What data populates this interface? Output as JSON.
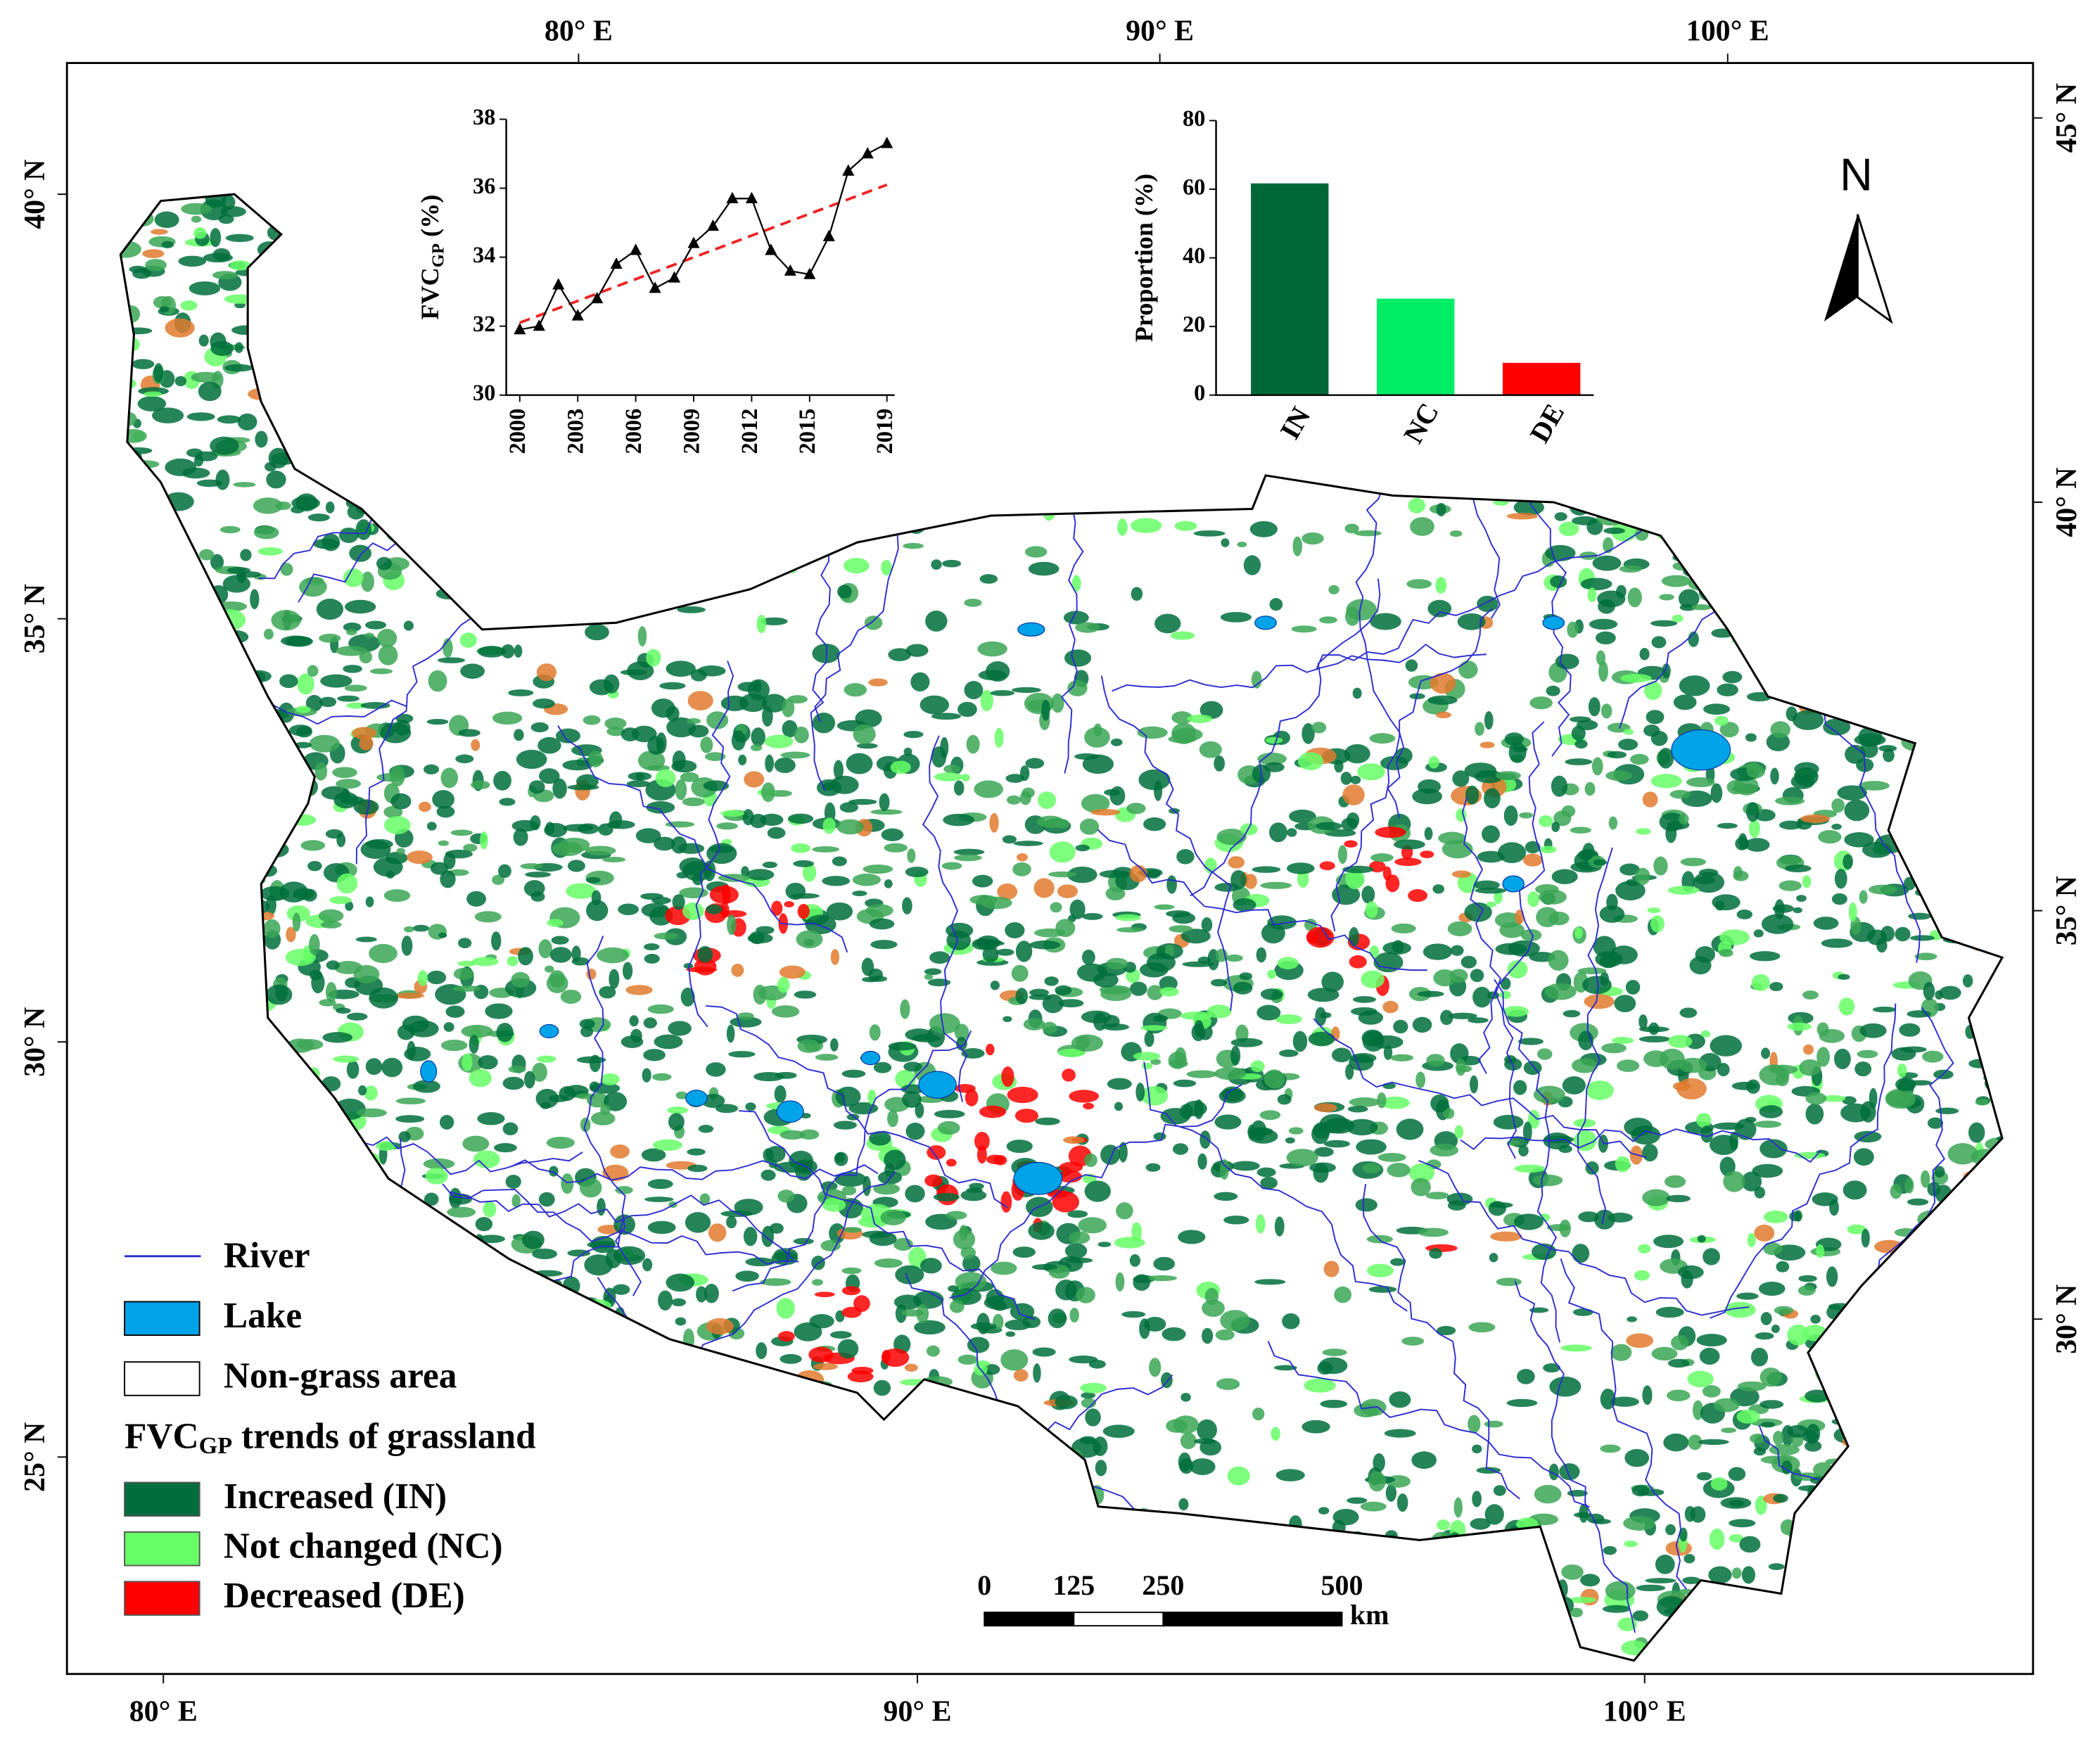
{
  "map": {
    "lon_labels_top": [
      "80° E",
      "90° E",
      "100° E"
    ],
    "lon_labels_bottom": [
      "80° E",
      "90° E",
      "100° E"
    ],
    "lat_labels_left": [
      "40° N",
      "35° N",
      "30° N",
      "25° N"
    ],
    "lat_labels_right": [
      "45° N",
      "40° N",
      "35° N",
      "30° N"
    ],
    "north": "N",
    "scale_bar": {
      "ticks": [
        0,
        125,
        250,
        500
      ],
      "unit": "km"
    }
  },
  "legend": {
    "items": [
      {
        "label": "River",
        "color": "#2b2bd0",
        "kind": "line"
      },
      {
        "label": "Lake",
        "color": "#00a2e8",
        "kind": "box"
      },
      {
        "label": "Non-grass area",
        "color": "#ffffff",
        "kind": "box"
      }
    ],
    "heading_parts": [
      "FVC",
      "GP",
      " trends of grassland"
    ],
    "classes": [
      {
        "label": "Increased (IN)",
        "color": "#006e3c"
      },
      {
        "label": "Not changed (NC)",
        "color": "#66ff66"
      },
      {
        "label": "Decreased (DE)",
        "color": "#ff0000"
      }
    ]
  },
  "chart_data": [
    {
      "type": "line",
      "x": [
        2000,
        2001,
        2002,
        2003,
        2004,
        2005,
        2006,
        2007,
        2008,
        2009,
        2010,
        2011,
        2012,
        2013,
        2014,
        2015,
        2016,
        2017,
        2018,
        2019
      ],
      "values": [
        31.9,
        32.0,
        33.2,
        32.3,
        32.8,
        33.8,
        34.2,
        33.1,
        33.4,
        34.4,
        34.9,
        35.7,
        35.7,
        34.2,
        33.6,
        33.5,
        34.6,
        36.5,
        37.0,
        37.3
      ],
      "color": "#000000",
      "trend": {
        "x": [
          2000,
          2019
        ],
        "values": [
          32.1,
          36.1
        ],
        "color": "#ee2222"
      },
      "xlim": [
        1999.3,
        2019.4
      ],
      "xticks": [
        2000,
        2003,
        2006,
        2009,
        2012,
        2015,
        2019
      ],
      "ylim": [
        30,
        38
      ],
      "yticks": [
        30,
        32,
        34,
        36,
        38
      ],
      "ylabel_parts": [
        "FVC",
        "GP",
        " (%)"
      ]
    },
    {
      "type": "bar",
      "categories": [
        "IN",
        "NC",
        "DE"
      ],
      "values": [
        61.7,
        28.1,
        9.4
      ],
      "colors": [
        "#006837",
        "#00ee66",
        "#ff0000"
      ],
      "ylim": [
        0,
        80
      ],
      "yticks": [
        0,
        20,
        40,
        60,
        80
      ],
      "ylabel": "Proportion (%)"
    }
  ]
}
